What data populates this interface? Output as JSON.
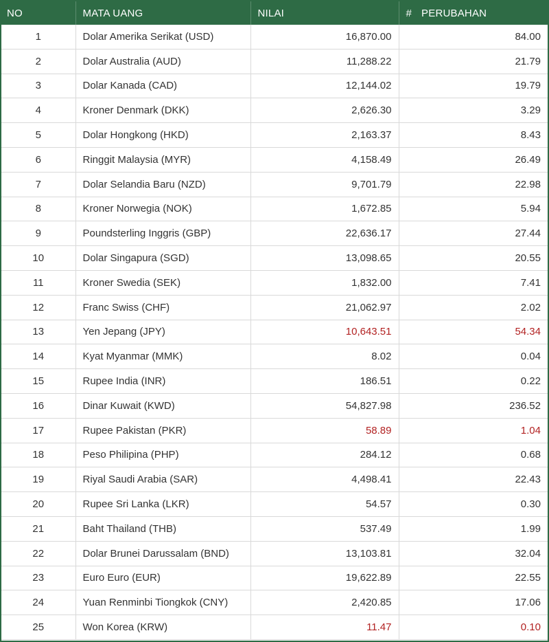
{
  "headers": {
    "no": "NO",
    "name": "MATA UANG",
    "value": "NILAI",
    "hash": "#",
    "change": "PERUBAHAN"
  },
  "colors": {
    "header_bg": "#2e6b45",
    "negative": "#b22222"
  },
  "rows": [
    {
      "no": "1",
      "name": "Dolar Amerika Serikat (USD)",
      "value": "16,870.00",
      "change": "84.00",
      "down": false
    },
    {
      "no": "2",
      "name": "Dolar Australia (AUD)",
      "value": "11,288.22",
      "change": "21.79",
      "down": false
    },
    {
      "no": "3",
      "name": "Dolar Kanada (CAD)",
      "value": "12,144.02",
      "change": "19.79",
      "down": false
    },
    {
      "no": "4",
      "name": "Kroner Denmark (DKK)",
      "value": "2,626.30",
      "change": "3.29",
      "down": false
    },
    {
      "no": "5",
      "name": "Dolar Hongkong (HKD)",
      "value": "2,163.37",
      "change": "8.43",
      "down": false
    },
    {
      "no": "6",
      "name": "Ringgit Malaysia (MYR)",
      "value": "4,158.49",
      "change": "26.49",
      "down": false
    },
    {
      "no": "7",
      "name": "Dolar Selandia Baru (NZD)",
      "value": "9,701.79",
      "change": "22.98",
      "down": false
    },
    {
      "no": "8",
      "name": "Kroner Norwegia (NOK)",
      "value": "1,672.85",
      "change": "5.94",
      "down": false
    },
    {
      "no": "9",
      "name": "Poundsterling Inggris (GBP)",
      "value": "22,636.17",
      "change": "27.44",
      "down": false
    },
    {
      "no": "10",
      "name": "Dolar Singapura (SGD)",
      "value": "13,098.65",
      "change": "20.55",
      "down": false
    },
    {
      "no": "11",
      "name": "Kroner Swedia (SEK)",
      "value": "1,832.00",
      "change": "7.41",
      "down": false
    },
    {
      "no": "12",
      "name": "Franc Swiss (CHF)",
      "value": "21,062.97",
      "change": "2.02",
      "down": false
    },
    {
      "no": "13",
      "name": "Yen Jepang (JPY)",
      "value": "10,643.51",
      "change": "54.34",
      "down": true
    },
    {
      "no": "14",
      "name": "Kyat Myanmar (MMK)",
      "value": "8.02",
      "change": "0.04",
      "down": false
    },
    {
      "no": "15",
      "name": "Rupee India (INR)",
      "value": "186.51",
      "change": "0.22",
      "down": false
    },
    {
      "no": "16",
      "name": "Dinar Kuwait (KWD)",
      "value": "54,827.98",
      "change": "236.52",
      "down": false
    },
    {
      "no": "17",
      "name": "Rupee Pakistan (PKR)",
      "value": "58.89",
      "change": "1.04",
      "down": true
    },
    {
      "no": "18",
      "name": "Peso Philipina (PHP)",
      "value": "284.12",
      "change": "0.68",
      "down": false
    },
    {
      "no": "19",
      "name": "Riyal Saudi Arabia (SAR)",
      "value": "4,498.41",
      "change": "22.43",
      "down": false
    },
    {
      "no": "20",
      "name": "Rupee Sri Lanka (LKR)",
      "value": "54.57",
      "change": "0.30",
      "down": false
    },
    {
      "no": "21",
      "name": "Baht Thailand (THB)",
      "value": "537.49",
      "change": "1.99",
      "down": false
    },
    {
      "no": "22",
      "name": "Dolar Brunei Darussalam (BND)",
      "value": "13,103.81",
      "change": "32.04",
      "down": false
    },
    {
      "no": "23",
      "name": "Euro Euro (EUR)",
      "value": "19,622.89",
      "change": "22.55",
      "down": false
    },
    {
      "no": "24",
      "name": "Yuan Renminbi Tiongkok (CNY)",
      "value": "2,420.85",
      "change": "17.06",
      "down": false
    },
    {
      "no": "25",
      "name": "Won Korea (KRW)",
      "value": "11.47",
      "change": "0.10",
      "down": true
    }
  ]
}
